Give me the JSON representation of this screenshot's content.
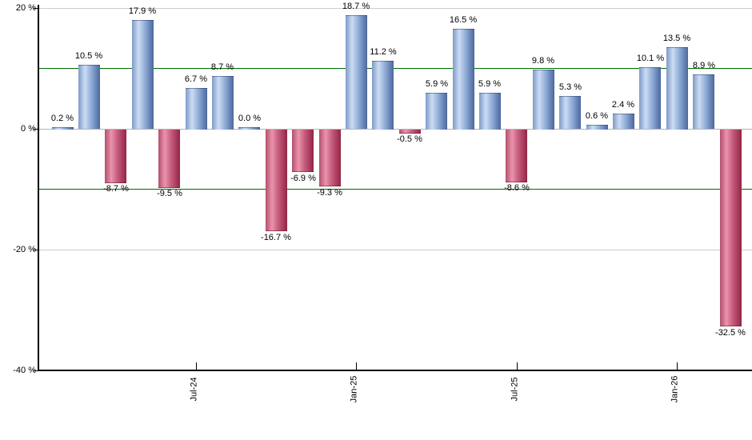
{
  "chart_data": {
    "type": "bar",
    "title": "",
    "xlabel": "",
    "ylabel": "",
    "ylim": [
      -40,
      20
    ],
    "grid": "horizontal",
    "legend": "none",
    "values": [
      0.2,
      10.5,
      -8.7,
      17.9,
      -9.5,
      6.7,
      8.7,
      0.0,
      -16.7,
      -6.9,
      -9.3,
      18.7,
      11.2,
      -0.5,
      5.9,
      16.5,
      5.9,
      -8.6,
      9.8,
      5.3,
      0.6,
      2.4,
      10.1,
      13.5,
      8.9,
      -32.5
    ],
    "bar_labels": [
      "0.2 %",
      "10.5 %",
      "-8.7 %",
      "17.9 %",
      "-9.5 %",
      "6.7 %",
      "8.7 %",
      "0.0 %",
      "-16.7 %",
      "-6.9 %",
      "-9.3 %",
      "18.7 %",
      "11.2 %",
      "-0.5 %",
      "5.9 %",
      "16.5 %",
      "5.9 %",
      "-8.6 %",
      "9.8 %",
      "5.3 %",
      "0.6 %",
      "2.4 %",
      "10.1 %",
      "13.5 %",
      "8.9 %",
      "-32.5 %"
    ],
    "y_axis": {
      "ticks": [
        {
          "value": 20,
          "label": "20 %"
        },
        {
          "value": 0,
          "label": "0 %"
        },
        {
          "value": -20,
          "label": "-20 %"
        },
        {
          "value": -40,
          "label": "-40 %"
        }
      ]
    },
    "x_axis": {
      "ticks": [
        {
          "bar_index": 5,
          "label": "Jul-24"
        },
        {
          "bar_index": 11,
          "label": "Jan-25"
        },
        {
          "bar_index": 17,
          "label": "Jul-25"
        },
        {
          "bar_index": 23,
          "label": "Jan-26"
        }
      ]
    },
    "reference_lines": {
      "values": [
        10,
        -10
      ],
      "color": "#006e00"
    },
    "colors": {
      "positive_left": "#7f9ac7",
      "positive_highlight": "#ccdcf3",
      "positive_mid": "#93afd9",
      "positive_edge": "#4b689f",
      "negative_left": "#b34e6f",
      "negative_highlight": "#eb94ab",
      "negative_mid": "#c65d7f",
      "negative_edge": "#932545",
      "grid": "#cccccc",
      "zero_line": "#b3b3b3",
      "axis": "#000000",
      "label_text": "#000000"
    }
  }
}
